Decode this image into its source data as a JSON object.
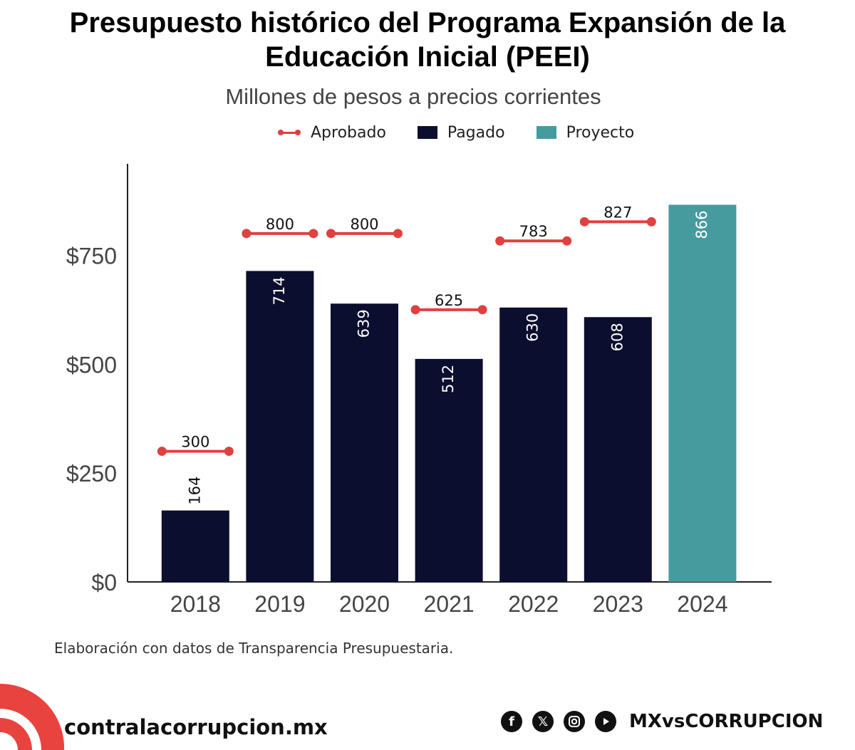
{
  "chart_data": {
    "type": "bar",
    "title_line1": "Presupuesto histórico del Programa Expansión de la",
    "title_line2": "Educación Inicial (PEEI)",
    "subtitle": "Millones de pesos a precios corrientes",
    "legend": {
      "approved": "Aprobado",
      "paid": "Pagado",
      "projected": "Proyecto"
    },
    "categories": [
      "2018",
      "2019",
      "2020",
      "2021",
      "2022",
      "2023",
      "2024"
    ],
    "series": [
      {
        "name": "Pagado",
        "values": [
          164,
          714,
          639,
          512,
          630,
          608,
          null
        ],
        "color": "#0b0e2e"
      },
      {
        "name": "Proyecto",
        "values": [
          null,
          null,
          null,
          null,
          null,
          null,
          866
        ],
        "color": "#469b9e"
      },
      {
        "name": "Aprobado",
        "values": [
          300,
          800,
          800,
          625,
          783,
          827,
          null
        ],
        "color": "#e04040"
      }
    ],
    "bar_labels": [
      "164",
      "714",
      "639",
      "512",
      "630",
      "608",
      "866"
    ],
    "approved_labels": [
      "300",
      "800",
      "800",
      "625",
      "783",
      "827"
    ],
    "y_ticks": [
      0,
      250,
      500,
      750
    ],
    "y_tick_labels": [
      "$0",
      "$250",
      "$500",
      "$750"
    ],
    "ylim": [
      0,
      960
    ],
    "grid": false,
    "legend_position": "top"
  },
  "source_note": "Elaboración con datos de Transparencia Presupuestaria.",
  "footer": {
    "site": "contralacorrupcion.mx",
    "handle": "MXvsCORRUPCION",
    "brand_color": "#e8433f",
    "icons": [
      "facebook-icon",
      "x-icon",
      "instagram-icon",
      "youtube-icon"
    ]
  }
}
